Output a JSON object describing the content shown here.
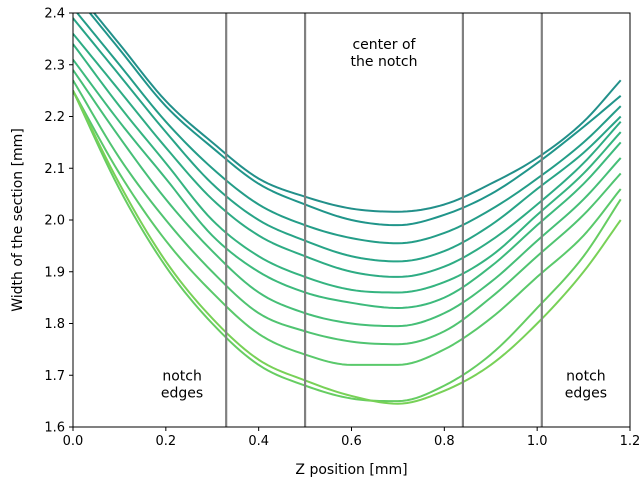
{
  "chart_data": {
    "type": "line",
    "title": "",
    "xlabel": "Z position [mm]",
    "ylabel": "Width of the section [mm]",
    "xlim": [
      0.0,
      1.2
    ],
    "ylim": [
      1.6,
      2.4
    ],
    "xticks": [
      0.0,
      0.2,
      0.4,
      0.6,
      0.8,
      1.0,
      1.2
    ],
    "xtick_labels": [
      "0.0",
      "0.2",
      "0.4",
      "0.6",
      "0.8",
      "1.0",
      "1.2"
    ],
    "yticks": [
      1.6,
      1.7,
      1.8,
      1.9,
      2.0,
      2.1,
      2.2,
      2.3,
      2.4
    ],
    "ytick_labels": [
      "1.6",
      "1.7",
      "1.8",
      "1.9",
      "2.0",
      "2.1",
      "2.2",
      "2.3",
      "2.4"
    ],
    "grid": false,
    "legend": "none",
    "vertical_lines": {
      "x": [
        0.33,
        0.5,
        0.84,
        1.01
      ],
      "color": "#808080"
    },
    "annotations": [
      {
        "lines": [
          "notch",
          "edges"
        ],
        "x": 0.235,
        "y": 1.69
      },
      {
        "lines": [
          "center of",
          "the notch"
        ],
        "x": 0.67,
        "y": 2.33
      },
      {
        "lines": [
          "notch",
          "edges"
        ],
        "x": 1.105,
        "y": 1.69
      }
    ],
    "series": [
      {
        "color": "#22908a",
        "x": [
          0.0,
          0.1,
          0.2,
          0.3,
          0.4,
          0.5,
          0.6,
          0.7,
          0.8,
          0.9,
          1.0,
          1.1,
          1.18
        ],
        "values": [
          2.45,
          2.34,
          2.23,
          2.15,
          2.08,
          2.045,
          2.022,
          2.016,
          2.03,
          2.07,
          2.12,
          2.19,
          2.27
        ]
      },
      {
        "color": "#20958a",
        "x": [
          0.0,
          0.1,
          0.2,
          0.3,
          0.4,
          0.5,
          0.6,
          0.7,
          0.8,
          0.9,
          1.0,
          1.1,
          1.18
        ],
        "values": [
          2.44,
          2.33,
          2.22,
          2.14,
          2.07,
          2.03,
          2.0,
          1.99,
          2.01,
          2.05,
          2.11,
          2.18,
          2.24
        ]
      },
      {
        "color": "#249d88",
        "x": [
          0.0,
          0.1,
          0.2,
          0.3,
          0.4,
          0.5,
          0.6,
          0.7,
          0.8,
          0.9,
          1.0,
          1.1,
          1.18
        ],
        "values": [
          2.41,
          2.3,
          2.19,
          2.1,
          2.03,
          1.99,
          1.965,
          1.955,
          1.975,
          2.02,
          2.08,
          2.15,
          2.22
        ]
      },
      {
        "color": "#28a487",
        "x": [
          0.0,
          0.1,
          0.2,
          0.3,
          0.4,
          0.5,
          0.6,
          0.7,
          0.8,
          0.9,
          1.0,
          1.1,
          1.18
        ],
        "values": [
          2.39,
          2.28,
          2.17,
          2.07,
          2.0,
          1.96,
          1.93,
          1.92,
          1.94,
          1.99,
          2.06,
          2.13,
          2.2
        ]
      },
      {
        "color": "#2eac84",
        "x": [
          0.0,
          0.1,
          0.2,
          0.3,
          0.4,
          0.5,
          0.6,
          0.7,
          0.8,
          0.9,
          1.0,
          1.1,
          1.18
        ],
        "values": [
          2.36,
          2.25,
          2.14,
          2.04,
          1.97,
          1.93,
          1.9,
          1.89,
          1.91,
          1.96,
          2.03,
          2.11,
          2.19
        ]
      },
      {
        "color": "#35b480",
        "x": [
          0.0,
          0.1,
          0.2,
          0.3,
          0.4,
          0.5,
          0.6,
          0.7,
          0.8,
          0.9,
          1.0,
          1.1,
          1.18
        ],
        "values": [
          2.34,
          2.22,
          2.11,
          2.0,
          1.93,
          1.89,
          1.865,
          1.86,
          1.88,
          1.93,
          2.01,
          2.09,
          2.17
        ]
      },
      {
        "color": "#3dba7c",
        "x": [
          0.0,
          0.1,
          0.2,
          0.3,
          0.4,
          0.5,
          0.6,
          0.7,
          0.8,
          0.9,
          1.0,
          1.1,
          1.18
        ],
        "values": [
          2.31,
          2.19,
          2.08,
          1.97,
          1.9,
          1.86,
          1.84,
          1.83,
          1.85,
          1.91,
          1.99,
          2.07,
          2.15
        ]
      },
      {
        "color": "#46bf77",
        "x": [
          0.0,
          0.1,
          0.2,
          0.3,
          0.4,
          0.5,
          0.6,
          0.7,
          0.8,
          0.9,
          1.0,
          1.1,
          1.18
        ],
        "values": [
          2.29,
          2.16,
          2.04,
          1.94,
          1.86,
          1.82,
          1.8,
          1.795,
          1.82,
          1.88,
          1.96,
          2.04,
          2.12
        ]
      },
      {
        "color": "#50c471",
        "x": [
          0.0,
          0.1,
          0.2,
          0.3,
          0.4,
          0.5,
          0.6,
          0.7,
          0.8,
          0.9,
          1.0,
          1.1,
          1.18
        ],
        "values": [
          2.27,
          2.12,
          2.0,
          1.9,
          1.82,
          1.785,
          1.765,
          1.76,
          1.785,
          1.85,
          1.93,
          2.01,
          2.09
        ]
      },
      {
        "color": "#5ac96b",
        "x": [
          0.0,
          0.1,
          0.2,
          0.3,
          0.4,
          0.5,
          0.6,
          0.7,
          0.8,
          0.9,
          1.0,
          1.1,
          1.18
        ],
        "values": [
          2.25,
          2.09,
          1.96,
          1.86,
          1.78,
          1.74,
          1.72,
          1.72,
          1.75,
          1.81,
          1.89,
          1.97,
          2.06
        ]
      },
      {
        "color": "#66cd62",
        "x": [
          0.0,
          0.1,
          0.2,
          0.3,
          0.4,
          0.5,
          0.6,
          0.7,
          0.8,
          0.9,
          1.0,
          1.1,
          1.18
        ],
        "values": [
          2.25,
          2.06,
          1.91,
          1.8,
          1.72,
          1.68,
          1.655,
          1.65,
          1.68,
          1.74,
          1.83,
          1.93,
          2.04
        ]
      },
      {
        "color": "#78d157",
        "x": [
          0.0,
          0.1,
          0.2,
          0.3,
          0.4,
          0.5,
          0.6,
          0.7,
          0.8,
          0.9,
          1.0,
          1.1,
          1.18
        ],
        "values": [
          2.25,
          2.07,
          1.92,
          1.81,
          1.73,
          1.69,
          1.66,
          1.645,
          1.67,
          1.72,
          1.8,
          1.9,
          2.0
        ]
      }
    ]
  }
}
